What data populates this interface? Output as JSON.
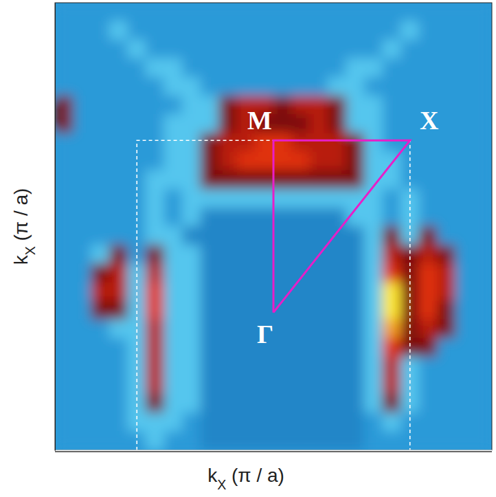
{
  "chart_data": {
    "type": "heatmap",
    "x_label": "kX (π / a)",
    "y_label": "kX (π / a)",
    "tick_labels": false,
    "xlim": [
      -1.6,
      1.6
    ],
    "ylim": [
      -0.8,
      1.8
    ],
    "zlim": [
      0,
      9
    ],
    "x": [
      -1.533,
      -1.4,
      -1.267,
      -1.133,
      -1.0,
      -0.867,
      -0.733,
      -0.6,
      -0.467,
      -0.333,
      -0.2,
      -0.067,
      0.067,
      0.2,
      0.333,
      0.467,
      0.6,
      0.733,
      0.867,
      1.0,
      1.133,
      1.267,
      1.4,
      1.533
    ],
    "y": [
      1.746,
      1.637,
      1.529,
      1.421,
      1.312,
      1.204,
      1.096,
      0.987,
      0.879,
      0.771,
      0.662,
      0.554,
      0.446,
      0.337,
      0.229,
      0.121,
      0.013,
      -0.096,
      -0.204,
      -0.312,
      -0.421,
      -0.529,
      -0.637,
      -0.746
    ],
    "z": [
      [
        2,
        2,
        2,
        2,
        2,
        2,
        2,
        2,
        2,
        2,
        2,
        2,
        2,
        2,
        2,
        2,
        2,
        2,
        2,
        2,
        2,
        2,
        2,
        2
      ],
      [
        2,
        2,
        2,
        3,
        2,
        2,
        2,
        2,
        2,
        2,
        2,
        2,
        2,
        2,
        2,
        2,
        2,
        2,
        2,
        3,
        2,
        2,
        2,
        2
      ],
      [
        2,
        2,
        2,
        2,
        3,
        2,
        2,
        2,
        2,
        2,
        2,
        2,
        2,
        2,
        2,
        2,
        2,
        2,
        3,
        2,
        2,
        2,
        2,
        2
      ],
      [
        2,
        2,
        2,
        2,
        2,
        3,
        3,
        2,
        2,
        2,
        2,
        2,
        2,
        2,
        2,
        2,
        3,
        3,
        2,
        2,
        2,
        2,
        2,
        2
      ],
      [
        2,
        2,
        2,
        2,
        2,
        2,
        3,
        3,
        2,
        2,
        2,
        2,
        2,
        2,
        2,
        3,
        3,
        2,
        2,
        2,
        2,
        2,
        2,
        2
      ],
      [
        5,
        2,
        2,
        2,
        2,
        2,
        2,
        3,
        3,
        5,
        6,
        6,
        5,
        6,
        6,
        5,
        3,
        3,
        2,
        2,
        2,
        2,
        2,
        2
      ],
      [
        5,
        2,
        2,
        2,
        2,
        2,
        3,
        3,
        3,
        5,
        6,
        5,
        5,
        5,
        6,
        5,
        3,
        3,
        2,
        2,
        2,
        2,
        2,
        2
      ],
      [
        2,
        2,
        2,
        2,
        2,
        2,
        3,
        3,
        5,
        6,
        6,
        7,
        7,
        6,
        6,
        6,
        5,
        3,
        2,
        2,
        2,
        2,
        2,
        2
      ],
      [
        2,
        2,
        2,
        2,
        2,
        2,
        3,
        3,
        5,
        6,
        7,
        7,
        7,
        7,
        6,
        6,
        5,
        3,
        3,
        2,
        2,
        2,
        2,
        2
      ],
      [
        2,
        2,
        2,
        2,
        2,
        3,
        3,
        3,
        5,
        5,
        5,
        5,
        5,
        5,
        5,
        5,
        5,
        3,
        3,
        2,
        2,
        2,
        2,
        2
      ],
      [
        2,
        2,
        2,
        2,
        2,
        3,
        2,
        3,
        3,
        3,
        3,
        3,
        3,
        3,
        3,
        3,
        3,
        3,
        2,
        3,
        2,
        2,
        2,
        2
      ],
      [
        2,
        2,
        2,
        2,
        2,
        3,
        2,
        3,
        1,
        1,
        1,
        1,
        1,
        1,
        1,
        1,
        3,
        3,
        2,
        3,
        2,
        2,
        2,
        2
      ],
      [
        2,
        2,
        2,
        2,
        2,
        3,
        3,
        1,
        1,
        1,
        1,
        1,
        1,
        1,
        1,
        1,
        1,
        3,
        5,
        3,
        5,
        2,
        2,
        2
      ],
      [
        2,
        2,
        3,
        5,
        2,
        5,
        3,
        3,
        1,
        1,
        1,
        1,
        1,
        1,
        1,
        1,
        1,
        3,
        6,
        5,
        6,
        5,
        2,
        2
      ],
      [
        2,
        2,
        5,
        6,
        3,
        6,
        3,
        3,
        1,
        1,
        1,
        1,
        1,
        1,
        1,
        1,
        1,
        3,
        7,
        5,
        7,
        6,
        2,
        2
      ],
      [
        2,
        2,
        6,
        6,
        3,
        7,
        3,
        3,
        1,
        1,
        1,
        1,
        1,
        1,
        1,
        1,
        1,
        3,
        9,
        5,
        7,
        6,
        2,
        2
      ],
      [
        2,
        2,
        5,
        5,
        3,
        7,
        3,
        3,
        1,
        1,
        1,
        1,
        1,
        1,
        1,
        1,
        1,
        3,
        9,
        5,
        7,
        5,
        2,
        2
      ],
      [
        2,
        2,
        2,
        3,
        3,
        6,
        3,
        3,
        1,
        1,
        1,
        1,
        1,
        1,
        1,
        1,
        1,
        3,
        8,
        5,
        6,
        5,
        2,
        2
      ],
      [
        2,
        2,
        2,
        2,
        3,
        6,
        3,
        3,
        1,
        1,
        1,
        1,
        1,
        1,
        1,
        1,
        1,
        3,
        7,
        5,
        5,
        2,
        2,
        2
      ],
      [
        2,
        2,
        2,
        2,
        3,
        6,
        3,
        3,
        1,
        1,
        1,
        1,
        1,
        1,
        1,
        1,
        1,
        3,
        6,
        3,
        2,
        2,
        2,
        2
      ],
      [
        2,
        2,
        2,
        2,
        3,
        6,
        3,
        3,
        1,
        1,
        1,
        1,
        1,
        1,
        1,
        1,
        1,
        3,
        6,
        3,
        2,
        2,
        2,
        2
      ],
      [
        2,
        2,
        2,
        2,
        3,
        5,
        3,
        3,
        1,
        1,
        1,
        1,
        1,
        1,
        1,
        1,
        1,
        3,
        5,
        3,
        2,
        2,
        2,
        2
      ],
      [
        2,
        2,
        2,
        2,
        3,
        3,
        3,
        2,
        1,
        1,
        1,
        1,
        1,
        1,
        1,
        1,
        1,
        2,
        3,
        2,
        2,
        2,
        2,
        2
      ],
      [
        2,
        2,
        2,
        2,
        2,
        3,
        2,
        2,
        1,
        1,
        1,
        1,
        1,
        1,
        1,
        1,
        1,
        2,
        2,
        2,
        2,
        2,
        2,
        2
      ]
    ],
    "points": [
      {
        "label": "Γ",
        "x": 0,
        "y": 0
      },
      {
        "label": "M",
        "x": 0,
        "y": 1
      },
      {
        "label": "X",
        "x": 1,
        "y": 1
      }
    ],
    "zone": {
      "x": [
        -1,
        1
      ],
      "y": [
        -0.8,
        1
      ]
    }
  }
}
